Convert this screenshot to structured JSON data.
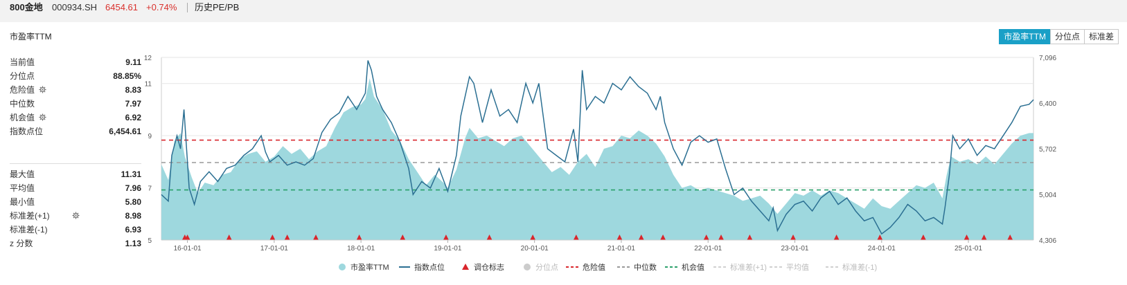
{
  "header": {
    "name": "800金地",
    "code": "000934.SH",
    "price": "6454.61",
    "change": "+0.74%",
    "tab": "历史PE/PB"
  },
  "panel": {
    "title": "市盈率TTM",
    "buttons": [
      "市盈率TTM",
      "分位点",
      "标准差"
    ]
  },
  "stats_top": [
    {
      "label": "当前值",
      "value": "9.11",
      "gear": false
    },
    {
      "label": "分位点",
      "value": "88.85%",
      "gear": false
    },
    {
      "label": "危险值",
      "value": "8.83",
      "gear": true
    },
    {
      "label": "中位数",
      "value": "7.97",
      "gear": false
    },
    {
      "label": "机会值",
      "value": "6.92",
      "gear": true
    },
    {
      "label": "指数点位",
      "value": "6,454.61",
      "gear": false
    }
  ],
  "stats_bottom": [
    {
      "label": "最大值",
      "value": "11.31",
      "gear": false
    },
    {
      "label": "平均值",
      "value": "7.96",
      "gear": false
    },
    {
      "label": "最小值",
      "value": "5.80",
      "gear": false
    },
    {
      "label": "标准差(+1)",
      "value": "8.98",
      "gear": true
    },
    {
      "label": "标准差(-1)",
      "value": "6.93",
      "gear": false
    },
    {
      "label": "z 分数",
      "value": "1.13",
      "gear": false
    }
  ],
  "colors": {
    "pe_area": "#9ed8de",
    "index_line": "#2b6f92",
    "marker": "#d9262c",
    "danger": "#d9262c",
    "median": "#999999",
    "chance": "#2aa06a",
    "disabled": "#cccccc"
  },
  "chart_data": {
    "type": "area",
    "x_ticks": [
      "16-01-01",
      "17-01-01",
      "18-01-01",
      "19-01-01",
      "20-01-01",
      "21-01-01",
      "22-01-01",
      "23-01-01",
      "24-01-01",
      "25-01-01"
    ],
    "x_range": [
      2015.7,
      2025.75
    ],
    "y_left": {
      "ticks": [
        "5",
        "7",
        "9",
        "11",
        "12"
      ],
      "values": [
        5,
        7,
        9,
        11,
        12
      ],
      "range": [
        5,
        12
      ]
    },
    "y_right": {
      "ticks": [
        "4,306",
        "5,004",
        "5,702",
        "6,400",
        "7,096"
      ],
      "values": [
        4306,
        5004,
        5702,
        6400,
        7096
      ],
      "range": [
        4306,
        7096
      ]
    },
    "reference_lines": {
      "danger": 8.83,
      "median": 7.97,
      "chance": 6.92
    },
    "series": [
      {
        "name": "市盈率TTM",
        "type": "area",
        "axis": "left",
        "points": [
          [
            2015.7,
            7.9
          ],
          [
            2015.78,
            7.3
          ],
          [
            2015.85,
            8.8
          ],
          [
            2015.92,
            9.1
          ],
          [
            2015.97,
            8.2
          ],
          [
            2016.05,
            7.4
          ],
          [
            2016.12,
            6.8
          ],
          [
            2016.2,
            7.2
          ],
          [
            2016.3,
            7.1
          ],
          [
            2016.4,
            7.5
          ],
          [
            2016.5,
            7.6
          ],
          [
            2016.6,
            8.1
          ],
          [
            2016.7,
            8.3
          ],
          [
            2016.8,
            8.4
          ],
          [
            2016.9,
            8.0
          ],
          [
            2017.0,
            8.2
          ],
          [
            2017.1,
            8.6
          ],
          [
            2017.2,
            8.3
          ],
          [
            2017.3,
            8.5
          ],
          [
            2017.4,
            8.1
          ],
          [
            2017.5,
            8.4
          ],
          [
            2017.6,
            8.6
          ],
          [
            2017.7,
            9.3
          ],
          [
            2017.8,
            9.9
          ],
          [
            2017.9,
            10.1
          ],
          [
            2018.0,
            10.2
          ],
          [
            2018.05,
            10.4
          ],
          [
            2018.1,
            11.2
          ],
          [
            2018.15,
            10.5
          ],
          [
            2018.25,
            10.0
          ],
          [
            2018.35,
            9.2
          ],
          [
            2018.45,
            8.8
          ],
          [
            2018.55,
            8.1
          ],
          [
            2018.65,
            7.6
          ],
          [
            2018.75,
            7.1
          ],
          [
            2018.85,
            7.5
          ],
          [
            2018.95,
            7.2
          ],
          [
            2019.0,
            7.0
          ],
          [
            2019.1,
            7.7
          ],
          [
            2019.2,
            8.9
          ],
          [
            2019.25,
            9.3
          ],
          [
            2019.35,
            8.9
          ],
          [
            2019.45,
            9.0
          ],
          [
            2019.55,
            8.8
          ],
          [
            2019.65,
            8.6
          ],
          [
            2019.75,
            8.9
          ],
          [
            2019.85,
            9.0
          ],
          [
            2019.95,
            8.6
          ],
          [
            2020.1,
            8.0
          ],
          [
            2020.2,
            7.6
          ],
          [
            2020.3,
            7.8
          ],
          [
            2020.4,
            7.5
          ],
          [
            2020.5,
            8.0
          ],
          [
            2020.6,
            8.3
          ],
          [
            2020.7,
            7.8
          ],
          [
            2020.8,
            8.5
          ],
          [
            2020.9,
            8.6
          ],
          [
            2021.0,
            9.0
          ],
          [
            2021.1,
            8.9
          ],
          [
            2021.2,
            9.2
          ],
          [
            2021.3,
            9.0
          ],
          [
            2021.4,
            8.7
          ],
          [
            2021.5,
            8.2
          ],
          [
            2021.6,
            7.5
          ],
          [
            2021.7,
            7.0
          ],
          [
            2021.8,
            7.1
          ],
          [
            2021.9,
            6.9
          ],
          [
            2022.0,
            7.0
          ],
          [
            2022.1,
            6.9
          ],
          [
            2022.2,
            6.8
          ],
          [
            2022.3,
            6.7
          ],
          [
            2022.4,
            6.5
          ],
          [
            2022.5,
            6.6
          ],
          [
            2022.6,
            6.7
          ],
          [
            2022.7,
            6.4
          ],
          [
            2022.8,
            6.0
          ],
          [
            2022.9,
            6.4
          ],
          [
            2023.0,
            6.8
          ],
          [
            2023.1,
            6.7
          ],
          [
            2023.2,
            6.9
          ],
          [
            2023.3,
            6.7
          ],
          [
            2023.4,
            6.9
          ],
          [
            2023.5,
            6.8
          ],
          [
            2023.6,
            6.6
          ],
          [
            2023.7,
            6.4
          ],
          [
            2023.8,
            6.2
          ],
          [
            2023.9,
            6.6
          ],
          [
            2024.0,
            6.3
          ],
          [
            2024.1,
            6.2
          ],
          [
            2024.2,
            6.5
          ],
          [
            2024.3,
            6.8
          ],
          [
            2024.4,
            7.1
          ],
          [
            2024.5,
            7.0
          ],
          [
            2024.6,
            7.2
          ],
          [
            2024.7,
            6.6
          ],
          [
            2024.75,
            7.5
          ],
          [
            2024.8,
            8.2
          ],
          [
            2024.9,
            8.0
          ],
          [
            2025.0,
            8.1
          ],
          [
            2025.1,
            7.9
          ],
          [
            2025.2,
            8.2
          ],
          [
            2025.3,
            7.9
          ],
          [
            2025.4,
            8.3
          ],
          [
            2025.5,
            8.7
          ],
          [
            2025.6,
            9.0
          ],
          [
            2025.7,
            9.1
          ],
          [
            2025.75,
            9.1
          ]
        ]
      },
      {
        "name": "指数点位",
        "type": "line",
        "axis": "right",
        "points": [
          [
            2015.7,
            5000
          ],
          [
            2015.78,
            4900
          ],
          [
            2015.82,
            5600
          ],
          [
            2015.88,
            5900
          ],
          [
            2015.92,
            5700
          ],
          [
            2015.96,
            6300
          ],
          [
            2016.02,
            5100
          ],
          [
            2016.08,
            4850
          ],
          [
            2016.15,
            5200
          ],
          [
            2016.25,
            5350
          ],
          [
            2016.35,
            5200
          ],
          [
            2016.45,
            5400
          ],
          [
            2016.55,
            5450
          ],
          [
            2016.65,
            5600
          ],
          [
            2016.75,
            5700
          ],
          [
            2016.85,
            5900
          ],
          [
            2016.9,
            5650
          ],
          [
            2016.95,
            5500
          ],
          [
            2017.05,
            5600
          ],
          [
            2017.15,
            5450
          ],
          [
            2017.25,
            5500
          ],
          [
            2017.35,
            5450
          ],
          [
            2017.45,
            5550
          ],
          [
            2017.55,
            5950
          ],
          [
            2017.65,
            6150
          ],
          [
            2017.75,
            6250
          ],
          [
            2017.85,
            6500
          ],
          [
            2017.95,
            6300
          ],
          [
            2018.05,
            6550
          ],
          [
            2018.08,
            7050
          ],
          [
            2018.12,
            6900
          ],
          [
            2018.18,
            6500
          ],
          [
            2018.25,
            6300
          ],
          [
            2018.35,
            6100
          ],
          [
            2018.45,
            5800
          ],
          [
            2018.55,
            5400
          ],
          [
            2018.6,
            5000
          ],
          [
            2018.7,
            5200
          ],
          [
            2018.8,
            5100
          ],
          [
            2018.9,
            5400
          ],
          [
            2019.0,
            5050
          ],
          [
            2019.1,
            5600
          ],
          [
            2019.15,
            6200
          ],
          [
            2019.25,
            6800
          ],
          [
            2019.3,
            6700
          ],
          [
            2019.4,
            6100
          ],
          [
            2019.5,
            6600
          ],
          [
            2019.6,
            6200
          ],
          [
            2019.7,
            6300
          ],
          [
            2019.8,
            6100
          ],
          [
            2019.9,
            6700
          ],
          [
            2019.98,
            6400
          ],
          [
            2020.05,
            6700
          ],
          [
            2020.15,
            5700
          ],
          [
            2020.25,
            5600
          ],
          [
            2020.35,
            5500
          ],
          [
            2020.45,
            6000
          ],
          [
            2020.5,
            5500
          ],
          [
            2020.55,
            6900
          ],
          [
            2020.6,
            6300
          ],
          [
            2020.7,
            6500
          ],
          [
            2020.8,
            6400
          ],
          [
            2020.9,
            6700
          ],
          [
            2021.0,
            6600
          ],
          [
            2021.1,
            6800
          ],
          [
            2021.2,
            6650
          ],
          [
            2021.3,
            6550
          ],
          [
            2021.4,
            6300
          ],
          [
            2021.45,
            6500
          ],
          [
            2021.5,
            6100
          ],
          [
            2021.6,
            5700
          ],
          [
            2021.7,
            5450
          ],
          [
            2021.8,
            5800
          ],
          [
            2021.9,
            5900
          ],
          [
            2022.0,
            5800
          ],
          [
            2022.1,
            5850
          ],
          [
            2022.2,
            5400
          ],
          [
            2022.3,
            5000
          ],
          [
            2022.4,
            5100
          ],
          [
            2022.5,
            4900
          ],
          [
            2022.6,
            4750
          ],
          [
            2022.7,
            4600
          ],
          [
            2022.75,
            4800
          ],
          [
            2022.8,
            4450
          ],
          [
            2022.9,
            4700
          ],
          [
            2023.0,
            4850
          ],
          [
            2023.1,
            4900
          ],
          [
            2023.2,
            4750
          ],
          [
            2023.3,
            4950
          ],
          [
            2023.4,
            5050
          ],
          [
            2023.5,
            4850
          ],
          [
            2023.6,
            4950
          ],
          [
            2023.7,
            4750
          ],
          [
            2023.8,
            4600
          ],
          [
            2023.9,
            4650
          ],
          [
            2024.0,
            4400
          ],
          [
            2024.1,
            4500
          ],
          [
            2024.2,
            4650
          ],
          [
            2024.3,
            4850
          ],
          [
            2024.4,
            4750
          ],
          [
            2024.5,
            4600
          ],
          [
            2024.6,
            4650
          ],
          [
            2024.7,
            4550
          ],
          [
            2024.73,
            4800
          ],
          [
            2024.78,
            5300
          ],
          [
            2024.82,
            5900
          ],
          [
            2024.9,
            5700
          ],
          [
            2025.0,
            5850
          ],
          [
            2025.1,
            5600
          ],
          [
            2025.2,
            5750
          ],
          [
            2025.3,
            5700
          ],
          [
            2025.4,
            5900
          ],
          [
            2025.5,
            6100
          ],
          [
            2025.6,
            6350
          ],
          [
            2025.7,
            6380
          ],
          [
            2025.75,
            6450
          ]
        ]
      }
    ],
    "markers": {
      "name": "调仓标志",
      "x": [
        2015.97,
        2016.0,
        2016.48,
        2016.98,
        2017.15,
        2017.48,
        2017.98,
        2018.48,
        2018.98,
        2019.48,
        2019.98,
        2020.48,
        2020.98,
        2021.23,
        2021.48,
        2021.98,
        2022.15,
        2022.48,
        2022.98,
        2023.48,
        2023.98,
        2024.48,
        2024.98,
        2025.18,
        2025.48
      ]
    },
    "legend": [
      {
        "label": "市盈率TTM",
        "kind": "dot",
        "active": true
      },
      {
        "label": "指数点位",
        "kind": "line",
        "active": true
      },
      {
        "label": "调仓标志",
        "kind": "triangle",
        "active": true
      },
      {
        "label": "分位点",
        "kind": "dot-gray",
        "active": false
      },
      {
        "label": "危险值",
        "kind": "dash-red",
        "active": true
      },
      {
        "label": "中位数",
        "kind": "dash-gray",
        "active": true
      },
      {
        "label": "机会值",
        "kind": "dash-green",
        "active": true
      },
      {
        "label": "标准差(+1)",
        "kind": "dash-light",
        "active": false
      },
      {
        "label": "平均值",
        "kind": "dash-light",
        "active": false
      },
      {
        "label": "标准差(-1)",
        "kind": "dash-light",
        "active": false
      }
    ]
  }
}
